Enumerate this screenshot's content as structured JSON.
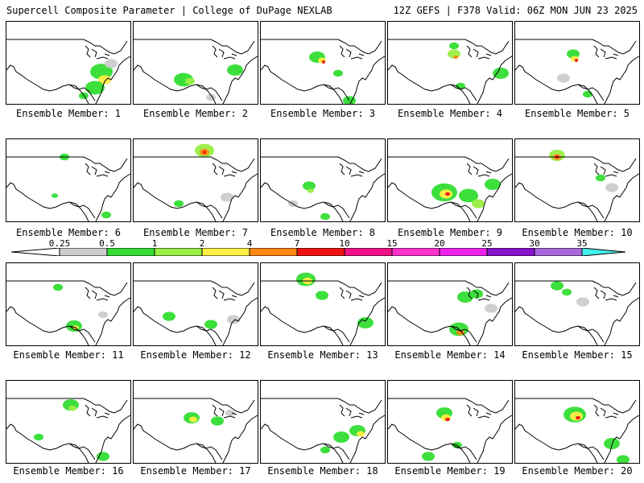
{
  "header": {
    "left": "Supercell Composite Parameter | College of DuPage NEXLAB",
    "right": "12Z GEFS | F378 Valid: 06Z MON JUN 23 2025"
  },
  "colorbar": {
    "labels": [
      "0.25",
      "0.5",
      "1",
      "2",
      "4",
      "7",
      "10",
      "15",
      "20",
      "25",
      "30",
      "35"
    ],
    "colors": [
      "#cccccc",
      "#33dd33",
      "#99ee44",
      "#ffee44",
      "#ff8811",
      "#ee1111",
      "#ee1188",
      "#ff33cc",
      "#ee22ee",
      "#8811cc",
      "#aa66dd",
      "#44eeee"
    ]
  },
  "members": [
    {
      "label": "Ensemble Member: 1"
    },
    {
      "label": "Ensemble Member: 2"
    },
    {
      "label": "Ensemble Member: 3"
    },
    {
      "label": "Ensemble Member: 4"
    },
    {
      "label": "Ensemble Member: 5"
    },
    {
      "label": "Ensemble Member: 6"
    },
    {
      "label": "Ensemble Member: 7"
    },
    {
      "label": "Ensemble Member: 8"
    },
    {
      "label": "Ensemble Member: 9"
    },
    {
      "label": "Ensemble Member: 10"
    },
    {
      "label": "Ensemble Member: 11"
    },
    {
      "label": "Ensemble Member: 12"
    },
    {
      "label": "Ensemble Member: 13"
    },
    {
      "label": "Ensemble Member: 14"
    },
    {
      "label": "Ensemble Member: 15"
    },
    {
      "label": "Ensemble Member: 16"
    },
    {
      "label": "Ensemble Member: 17"
    },
    {
      "label": "Ensemble Member: 18"
    },
    {
      "label": "Ensemble Member: 19"
    },
    {
      "label": "Ensemble Member: 20"
    }
  ]
}
